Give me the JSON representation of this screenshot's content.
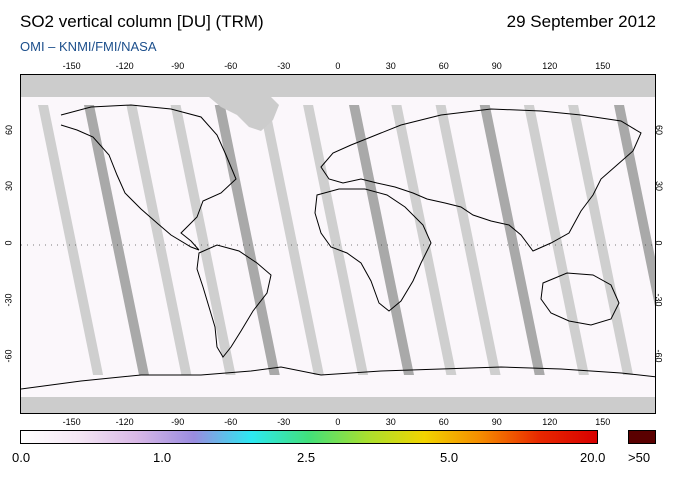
{
  "header": {
    "title": "SO2 vertical column [DU] (TRM)",
    "date": "29 September 2012",
    "subtitle": "OMI  –  KNMI/FMI/NASA"
  },
  "map": {
    "longitude_ticks": [
      "-150",
      "-120",
      "-90",
      "-60",
      "-30",
      "0",
      "30",
      "60",
      "90",
      "120",
      "150"
    ],
    "latitude_ticks": [
      "60",
      "30",
      "0",
      "-30",
      "-60"
    ],
    "colors": {
      "background": "#fbf7fb",
      "polar_no_data": "#cccccc",
      "swath_gap": "#cfcfcf",
      "dark_swath": "#a9a9a9",
      "coastline": "#000000"
    }
  },
  "colorbar": {
    "labels": [
      "0.0",
      "1.0",
      "2.5",
      "5.0",
      "20.0",
      ">50"
    ],
    "stops": [
      "#ffffff",
      "#f4e6f4",
      "#d9b8e6",
      "#9a8ce0",
      "#2de8f2",
      "#42e07a",
      "#a8e030",
      "#f2d400",
      "#f58a00",
      "#e82800",
      "#d80000"
    ],
    "over_color": "#5a0000"
  }
}
